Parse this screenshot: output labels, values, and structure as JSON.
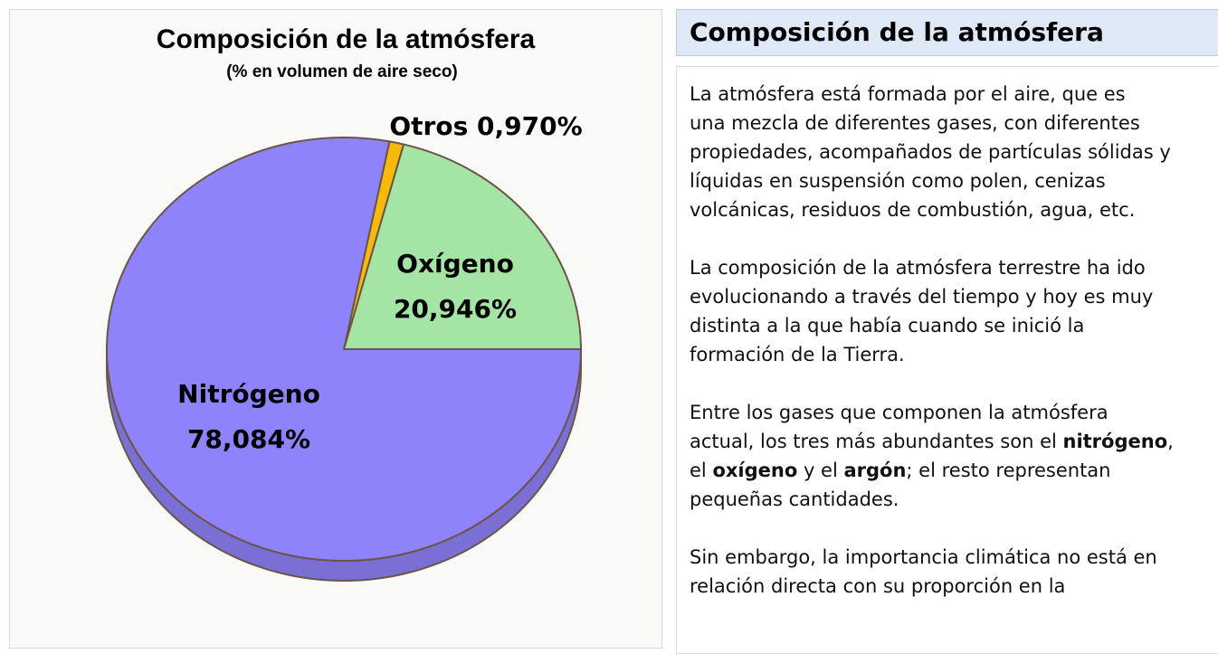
{
  "chart_data": {
    "type": "pie",
    "title": "Composición de la atmósfera",
    "subtitle": "(% en volumen de aire seco)",
    "unit": "%",
    "slices": [
      {
        "name": "Nitrógeno",
        "value": 78.084,
        "label": "78,084%",
        "color": "#8f83fb"
      },
      {
        "name": "Oxígeno",
        "value": 20.946,
        "label": "20,946%",
        "color": "#a4e4a4"
      },
      {
        "name": "Otros",
        "value": 0.97,
        "label": "0,970%",
        "color": "#f7ba0c"
      }
    ],
    "edge_color": "#6b5547",
    "style": "3d"
  },
  "chart_labels": {
    "otros": "Otros 0,970%",
    "oxigeno_name": "Oxígeno",
    "oxigeno_value": "20,946%",
    "nitrogeno_name": "Nitrógeno",
    "nitrogeno_value": "78,084%"
  },
  "info": {
    "title": "Composición de la atmósfera",
    "p1": [
      "La atmósfera está formada por el aire, que es",
      "una mezcla de diferentes gases, con diferentes",
      "propiedades, acompañados de partículas sólidas y",
      "líquidas en suspensión como polen, cenizas",
      "volcánicas, residuos de combustión, agua, etc."
    ],
    "p2": [
      "La composición de la atmósfera terrestre ha ido",
      "evolucionando a través del tiempo y hoy es muy",
      "distinta a la que había cuando se inició la",
      "formación de la Tierra."
    ],
    "p3": {
      "line1": "Entre los gases que componen la atmósfera",
      "line2_pre": "actual, los tres más abundantes son el ",
      "bold_1": "nitrógeno",
      "line2_post": ",",
      "line3_pre": " el ",
      "bold_2": "oxígeno",
      "line3_mid": " y el ",
      "bold_3": "argón",
      "line3_post": "; el resto representan",
      "line4": "pequeñas cantidades."
    },
    "p4": [
      "Sin embargo, la importancia climática no está en",
      "relación directa con su proporción en la"
    ]
  }
}
